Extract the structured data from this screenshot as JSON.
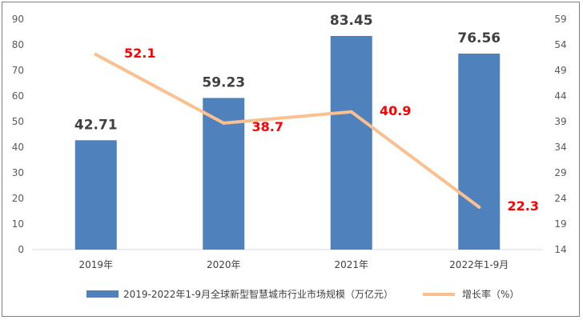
{
  "colors": {
    "bar": "#4f81bd",
    "line": "#fac090",
    "line_label": "#ff0000",
    "axis_text": "#595959"
  },
  "chart_data": {
    "type": "bar",
    "categories": [
      "2019年",
      "2020年",
      "2021年",
      "2022年1-9月"
    ],
    "series": [
      {
        "name": "2019-2022年1-9月全球新型智慧城市行业市场规模（万亿元）",
        "type": "bar",
        "axis": "left",
        "values": [
          42.71,
          59.23,
          83.45,
          76.56
        ]
      },
      {
        "name": "增长率（%）",
        "type": "line",
        "axis": "right",
        "values": [
          52.1,
          38.7,
          40.9,
          22.3
        ]
      }
    ],
    "y_left": {
      "ylim": [
        0,
        90
      ],
      "ticks": [
        "0",
        "10",
        "20",
        "30",
        "40",
        "50",
        "60",
        "70",
        "80",
        "90"
      ]
    },
    "y_right": {
      "ylim": [
        14,
        59
      ],
      "ticks": [
        "14",
        "19",
        "24",
        "29",
        "34",
        "39",
        "44",
        "49",
        "54",
        "59"
      ]
    },
    "legend": "bottom",
    "grid": false
  }
}
